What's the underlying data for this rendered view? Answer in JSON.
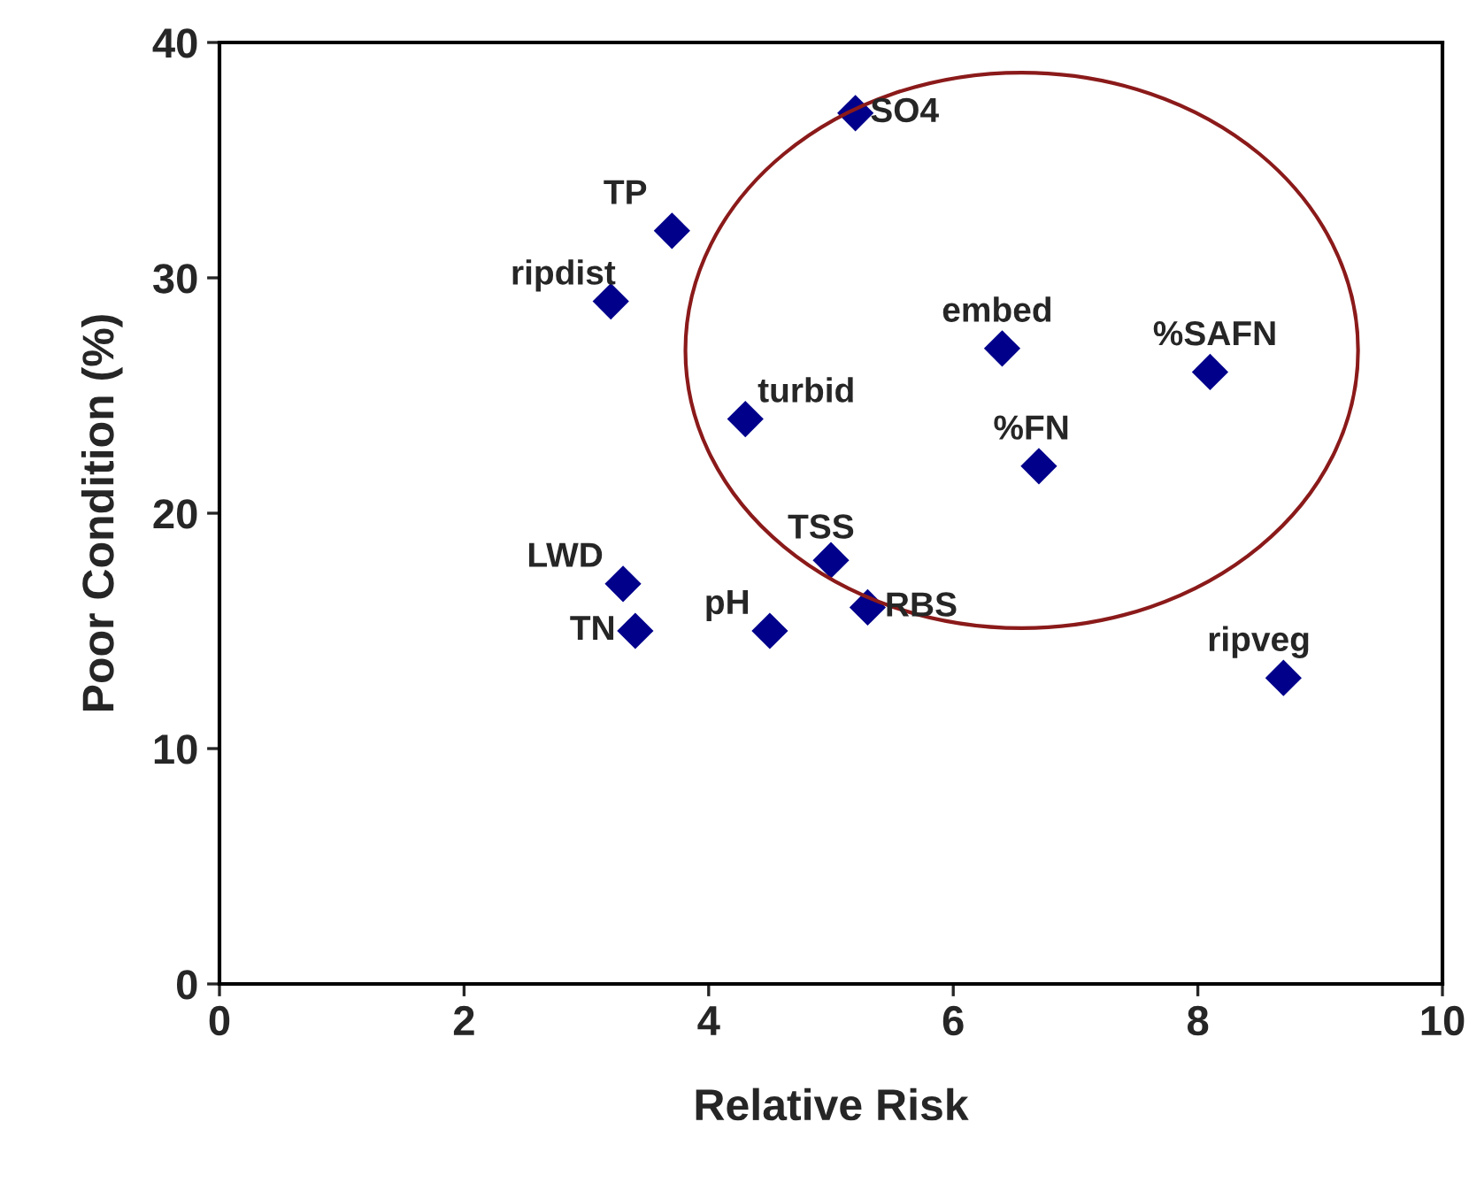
{
  "chart_data": {
    "type": "scatter",
    "xlabel": "Relative Risk",
    "ylabel": "Poor Condition (%)",
    "x": [
      5.2,
      3.7,
      3.2,
      6.4,
      8.1,
      4.3,
      6.7,
      3.3,
      5.0,
      5.3,
      3.4,
      4.5,
      8.7
    ],
    "series": [
      {
        "color": "#00008b",
        "values": [
          37,
          32,
          29,
          27,
          26,
          24,
          22,
          17,
          18,
          16,
          15,
          15,
          13
        ]
      }
    ],
    "annotations": [
      {
        "text": "SO4",
        "x": 5.2,
        "y": 37
      },
      {
        "text": "TP",
        "x": 3.7,
        "y": 32
      },
      {
        "text": "ripdist",
        "x": 3.2,
        "y": 29
      },
      {
        "text": "embed",
        "x": 6.4,
        "y": 27
      },
      {
        "text": "%SAFN",
        "x": 8.1,
        "y": 26
      },
      {
        "text": "turbid",
        "x": 4.3,
        "y": 24
      },
      {
        "text": "%FN",
        "x": 6.7,
        "y": 22
      },
      {
        "text": "LWD",
        "x": 3.3,
        "y": 17
      },
      {
        "text": "TSS",
        "x": 5.0,
        "y": 18
      },
      {
        "text": "RBS",
        "x": 5.3,
        "y": 16
      },
      {
        "text": "TN",
        "x": 3.4,
        "y": 15
      },
      {
        "text": "pH",
        "x": 4.5,
        "y": 15
      },
      {
        "text": "ripveg",
        "x": 8.7,
        "y": 13
      }
    ],
    "xlim": [
      0,
      10
    ],
    "xticks": [
      0,
      2,
      4,
      6,
      8,
      10
    ],
    "ylim": [
      0,
      40
    ],
    "yticks": [
      0,
      10,
      20,
      30,
      40
    ],
    "marker": "diamond",
    "grid": false,
    "legend": false
  }
}
